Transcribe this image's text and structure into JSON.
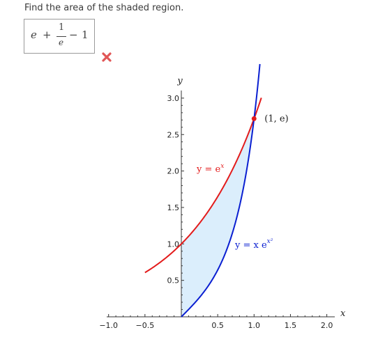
{
  "question": {
    "prompt": "Find the area of the shaded region."
  },
  "answer": {
    "term1": "e",
    "op1": "+",
    "numerator": "1",
    "denominator": "e",
    "op2": "−",
    "term2": "1",
    "status": "incorrect"
  },
  "status_icon": {
    "name": "x-mark-icon",
    "color": "#e15656"
  },
  "colors": {
    "curve_exp": "#e31b1b",
    "curve_xexp": "#0a1fd1",
    "shade": "#dbeefc",
    "point": "#e31b1b"
  },
  "chart_data": {
    "type": "line",
    "xlabel": "x",
    "ylabel": "y",
    "xlim": [
      -1.0,
      2.0
    ],
    "ylim": [
      0,
      3.0
    ],
    "x_ticks": [
      "−1.0",
      "−0.5",
      "0.5",
      "1.0",
      "1.5",
      "2.0"
    ],
    "x_tick_values": [
      -1.0,
      -0.5,
      0.5,
      1.0,
      1.5,
      2.0
    ],
    "y_ticks": [
      "0.5",
      "1.0",
      "1.5",
      "2.0",
      "2.5",
      "3.0"
    ],
    "y_tick_values": [
      0.5,
      1.0,
      1.5,
      2.0,
      2.5,
      3.0
    ],
    "series": [
      {
        "expression": "y = e^x",
        "label_main": "y = e",
        "label_sup": "x",
        "domain": [
          -0.5,
          1.1
        ]
      },
      {
        "expression": "y = x e^(x^2)",
        "label_main": "y = x e",
        "label_sup": "x²",
        "domain": [
          0,
          1.08
        ]
      }
    ],
    "shaded_region": {
      "x_from": 0,
      "x_to": 1,
      "between": [
        "x e^(x^2)",
        "e^x"
      ]
    },
    "points": [
      {
        "x": 1,
        "y": 2.718,
        "label": "(1, e)"
      }
    ]
  }
}
